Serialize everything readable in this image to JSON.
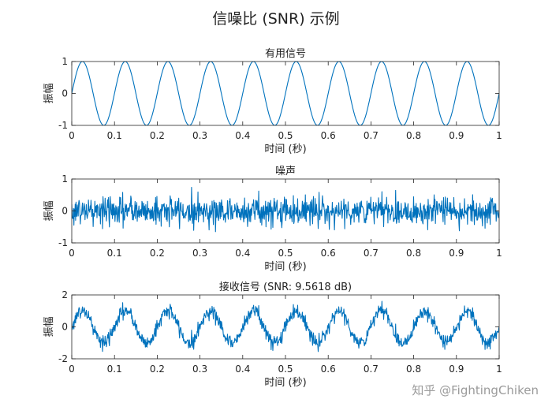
{
  "title": "信噪比 (SNR) 示例",
  "watermark": "知乎 @FightingChiken",
  "colors": {
    "series": "#0072BD",
    "axis": "#262626"
  },
  "chart_data": [
    {
      "type": "line",
      "title": "有用信号",
      "xlabel": "时间 (秒)",
      "ylabel": "振幅",
      "xlim": [
        0,
        1
      ],
      "ylim": [
        -1,
        1
      ],
      "xticks": [
        0,
        0.1,
        0.2,
        0.3,
        0.4,
        0.5,
        0.6,
        0.7,
        0.8,
        0.9,
        1
      ],
      "xtick_labels": [
        "0",
        "0.1",
        "0.2",
        "0.3",
        "0.4",
        "0.5",
        "0.6",
        "0.7",
        "0.8",
        "0.9",
        "1"
      ],
      "yticks": [
        -1,
        0,
        1
      ],
      "ytick_labels": [
        "-1",
        "0",
        "1"
      ],
      "grid": false,
      "series": [
        {
          "model": "sine",
          "frequency_hz": 10,
          "amplitude": 1,
          "t_start": 0,
          "t_end": 1
        }
      ]
    },
    {
      "type": "line",
      "title": "噪声",
      "xlabel": "时间 (秒)",
      "ylabel": "振幅",
      "xlim": [
        0,
        1
      ],
      "ylim": [
        -1,
        1
      ],
      "xticks": [
        0,
        0.1,
        0.2,
        0.3,
        0.4,
        0.5,
        0.6,
        0.7,
        0.8,
        0.9,
        1
      ],
      "xtick_labels": [
        "0",
        "0.1",
        "0.2",
        "0.3",
        "0.4",
        "0.5",
        "0.6",
        "0.7",
        "0.8",
        "0.9",
        "1"
      ],
      "yticks": [
        -1,
        0,
        1
      ],
      "ytick_labels": [
        "-1",
        "0",
        "1"
      ],
      "grid": false,
      "series": [
        {
          "model": "gaussian-noise",
          "std": 0.23,
          "t_start": 0,
          "t_end": 1
        }
      ]
    },
    {
      "type": "line",
      "title": "接收信号 (SNR: 9.5618 dB)",
      "xlabel": "时间 (秒)",
      "ylabel": "振幅",
      "xlim": [
        0,
        1
      ],
      "ylim": [
        -2,
        2
      ],
      "xticks": [
        0,
        0.1,
        0.2,
        0.3,
        0.4,
        0.5,
        0.6,
        0.7,
        0.8,
        0.9,
        1
      ],
      "xtick_labels": [
        "0",
        "0.1",
        "0.2",
        "0.3",
        "0.4",
        "0.5",
        "0.6",
        "0.7",
        "0.8",
        "0.9",
        "1"
      ],
      "yticks": [
        -2,
        0,
        2
      ],
      "ytick_labels": [
        "-2",
        "0",
        "2"
      ],
      "grid": false,
      "series": [
        {
          "model": "sine-plus-noise",
          "frequency_hz": 10,
          "amplitude": 1,
          "std": 0.23,
          "t_start": 0,
          "t_end": 1
        }
      ]
    }
  ]
}
